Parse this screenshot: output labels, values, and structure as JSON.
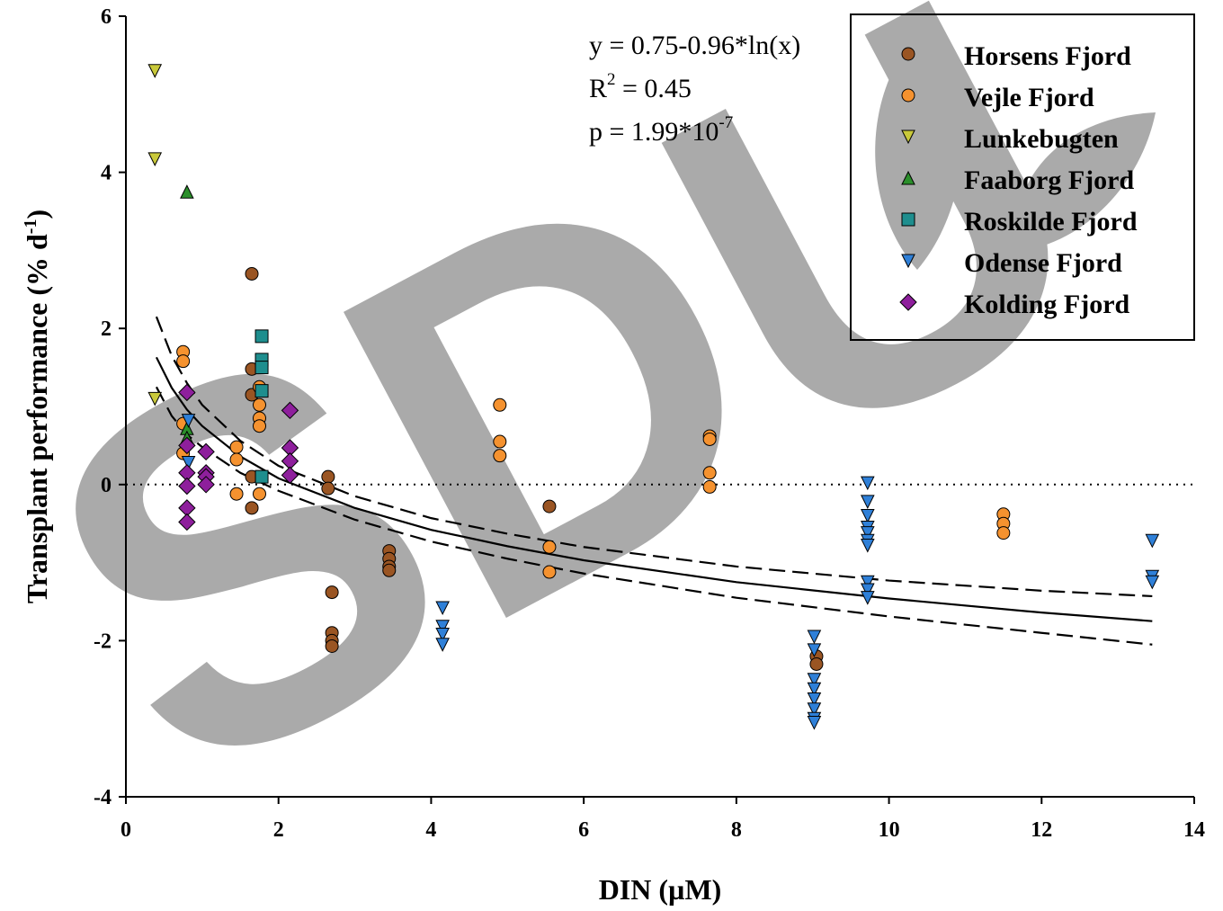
{
  "chart_data": {
    "type": "scatter",
    "x_label": "DIN (µM)",
    "y_label": {
      "text": "Transplant performance (% d",
      "sup": "-1",
      "end": ")"
    },
    "watermark": "SDU",
    "annotations": [
      {
        "base": "y = 0.75-0.96*ln(x)"
      },
      {
        "base": "R",
        "sup": "2",
        "end": " = 0.45"
      },
      {
        "base": "p = 1.99*10",
        "sup": "-7"
      }
    ],
    "xlim": [
      0,
      14
    ],
    "xticks": [
      0,
      2,
      4,
      6,
      8,
      10,
      12,
      14
    ],
    "ylim": [
      -4,
      6
    ],
    "yticks": [
      -4,
      -2,
      0,
      2,
      4,
      6
    ],
    "reference_line": 0,
    "legend": "upper right",
    "series": [
      {
        "name": "Horsens Fjord",
        "color": "#9a5523",
        "marker": "circle",
        "x": [
          1.65,
          1.65,
          1.65,
          1.65,
          1.65,
          2.65,
          2.65,
          2.7,
          2.7,
          2.7,
          2.7,
          3.45,
          3.45,
          3.45,
          3.45,
          5.55,
          9.05,
          9.05
        ],
        "values": [
          2.7,
          1.48,
          1.15,
          0.1,
          -0.3,
          0.1,
          -0.05,
          -1.38,
          -1.9,
          -2.0,
          -2.07,
          -0.85,
          -0.95,
          -1.05,
          -1.1,
          -0.28,
          -2.2,
          -2.3
        ]
      },
      {
        "name": "Vejle Fjord",
        "color": "#f5922f",
        "marker": "circle",
        "x": [
          0.75,
          0.75,
          0.75,
          0.75,
          1.45,
          1.45,
          1.45,
          1.75,
          1.75,
          1.75,
          1.75,
          1.75,
          4.9,
          4.9,
          4.9,
          5.55,
          5.55,
          7.65,
          7.65,
          7.65,
          7.65,
          11.5,
          11.5,
          11.5
        ],
        "values": [
          1.7,
          1.58,
          0.78,
          0.4,
          0.48,
          0.32,
          -0.12,
          1.25,
          1.02,
          0.85,
          0.75,
          -0.12,
          1.02,
          0.55,
          0.37,
          -0.8,
          -1.12,
          0.62,
          0.58,
          0.15,
          -0.03,
          -0.38,
          -0.5,
          -0.62
        ]
      },
      {
        "name": "Lunkebugten",
        "color": "#c9c93a",
        "marker": "triangle-down",
        "x": [
          0.38,
          0.38,
          0.38
        ],
        "values": [
          5.3,
          4.17,
          1.1
        ]
      },
      {
        "name": "Faaborg Fjord",
        "color": "#2b8f2b",
        "marker": "triangle-up",
        "x": [
          0.8,
          0.8,
          0.8
        ],
        "values": [
          3.75,
          0.72,
          0.6
        ]
      },
      {
        "name": "Roskilde Fjord",
        "color": "#1e8e8e",
        "marker": "square",
        "x": [
          1.78,
          1.78,
          1.78,
          1.78,
          1.78
        ],
        "values": [
          1.9,
          1.6,
          1.5,
          1.2,
          0.1
        ]
      },
      {
        "name": "Odense Fjord",
        "color": "#2f80d8",
        "marker": "triangle-down",
        "x": [
          0.82,
          0.82,
          4.15,
          4.15,
          4.15,
          4.15,
          9.02,
          9.02,
          9.02,
          9.02,
          9.02,
          9.02,
          9.02,
          9.02,
          9.72,
          9.72,
          9.72,
          9.72,
          9.72,
          9.72,
          9.72,
          9.72,
          9.72,
          9.72,
          13.45,
          13.45,
          13.45
        ],
        "values": [
          0.82,
          0.28,
          -1.58,
          -1.82,
          -1.92,
          -2.05,
          -1.95,
          -2.12,
          -2.5,
          -2.62,
          -2.75,
          -2.88,
          -3.0,
          -3.05,
          0.02,
          -0.22,
          -0.4,
          -0.55,
          -0.62,
          -0.72,
          -0.78,
          -1.25,
          -1.35,
          -1.45,
          -0.72,
          -1.18,
          -1.25
        ]
      },
      {
        "name": "Kolding Fjord",
        "color": "#8e1f9c",
        "marker": "diamond",
        "x": [
          0.8,
          0.8,
          0.8,
          0.8,
          0.8,
          0.8,
          1.05,
          1.05,
          1.05,
          1.05,
          2.15,
          2.15,
          2.15,
          2.15
        ],
        "values": [
          1.18,
          0.5,
          0.15,
          -0.02,
          -0.3,
          -0.48,
          0.42,
          0.15,
          0.1,
          0.0,
          0.95,
          0.47,
          0.3,
          0.12
        ]
      }
    ],
    "curves": [
      {
        "dash": false,
        "x": [
          0.4,
          0.6,
          0.8,
          1,
          1.5,
          2,
          3,
          4,
          5,
          6,
          8,
          10,
          12,
          13.45
        ],
        "values": [
          1.63,
          1.24,
          0.96,
          0.75,
          0.36,
          0.08,
          -0.3,
          -0.58,
          -0.79,
          -0.97,
          -1.25,
          -1.46,
          -1.64,
          -1.75
        ]
      },
      {
        "dash": true,
        "x": [
          0.4,
          0.6,
          0.8,
          1,
          1.5,
          2,
          3,
          4,
          5,
          6,
          8,
          10,
          12,
          13.45
        ],
        "values": [
          2.15,
          1.65,
          1.3,
          1.02,
          0.56,
          0.24,
          -0.15,
          -0.43,
          -0.63,
          -0.8,
          -1.05,
          -1.23,
          -1.36,
          -1.43
        ]
      },
      {
        "dash": true,
        "x": [
          0.4,
          0.6,
          0.8,
          1,
          1.5,
          2,
          3,
          4,
          5,
          6,
          8,
          10,
          12,
          13.45
        ],
        "values": [
          1.25,
          0.88,
          0.64,
          0.48,
          0.15,
          -0.08,
          -0.45,
          -0.73,
          -0.95,
          -1.14,
          -1.45,
          -1.69,
          -1.9,
          -2.05
        ]
      }
    ]
  }
}
